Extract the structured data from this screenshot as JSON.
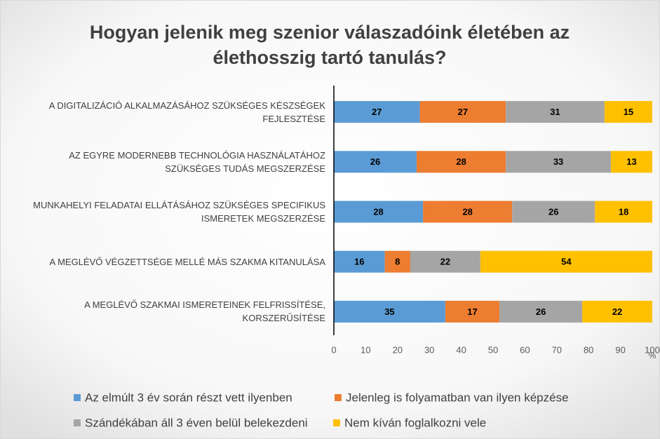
{
  "chart_data": {
    "type": "stacked-bar-horizontal",
    "title": "Hogyan jelenik meg szenior válaszadóink életében az élethosszig tartó tanulás?",
    "categories": [
      "A DIGITALIZÁCIÓ ALKALMAZÁSÁHOZ SZÜKSÉGES KÉSZSÉGEK FEJLESZTÉSE",
      "AZ EGYRE MODERNEBB TECHNOLÓGIA HASZNÁLATÁHOZ SZÜKSÉGES TUDÁS MEGSZERZÉSE",
      "MUNKAHELYI FELADATAI ELLÁTÁSÁHOZ SZÜKSÉGES SPECIFIKUS ISMERETEK MEGSZERZÉSE",
      "A MEGLÉVŐ VÉGZETTSÉGE MELLÉ MÁS SZAKMA KITANULÁSA",
      "A MEGLÉVŐ SZAKMAI ISMERETEINEK FELFRISSÍTÉSE, KORSZERŰSÍTÉSE"
    ],
    "series": [
      {
        "name": "Az elmúlt 3 év során részt vett ilyenben",
        "color": "#5b9bd5",
        "values": [
          27,
          26,
          28,
          16,
          35
        ]
      },
      {
        "name": "Jelenleg is folyamatban van ilyen képzése",
        "color": "#ed7d31",
        "values": [
          27,
          28,
          28,
          8,
          17
        ]
      },
      {
        "name": "Szándékában áll 3 éven belül belekezdeni",
        "color": "#a5a5a5",
        "values": [
          31,
          33,
          26,
          22,
          26
        ]
      },
      {
        "name": "Nem kíván foglalkozni vele",
        "color": "#ffc000",
        "values": [
          15,
          13,
          18,
          54,
          22
        ]
      }
    ],
    "x_label": "%",
    "xlim": [
      0,
      100
    ],
    "xticks": [
      0,
      10,
      20,
      30,
      40,
      50,
      60,
      70,
      80,
      90,
      100
    ],
    "legend": "bottom"
  }
}
